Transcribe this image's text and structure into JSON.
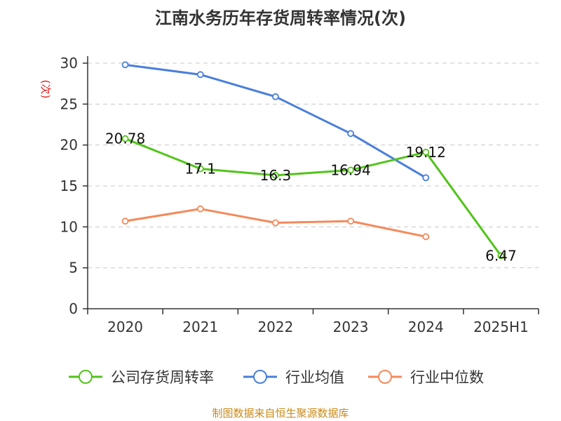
{
  "chart_data": {
    "type": "line",
    "title": "江南水务历年存货周转率情况(次)",
    "ylabel": "(次)",
    "categories": [
      "2020",
      "2021",
      "2022",
      "2023",
      "2024",
      "2025H1"
    ],
    "ylim": [
      0,
      30
    ],
    "yticks": [
      0,
      5,
      10,
      15,
      20,
      25,
      30
    ],
    "grid": true,
    "legend_position": "bottom",
    "series": [
      {
        "name": "公司存货周转率",
        "color": "#52c41a",
        "values": [
          20.78,
          17.1,
          16.3,
          16.94,
          19.12,
          6.47
        ],
        "show_labels": true
      },
      {
        "name": "行业均值",
        "color": "#4a7fdc",
        "values": [
          29.8,
          28.6,
          25.9,
          21.4,
          16.0,
          null
        ],
        "show_labels": false
      },
      {
        "name": "行业中位数",
        "color": "#f5895a",
        "values": [
          10.7,
          12.2,
          10.5,
          10.7,
          8.8,
          null
        ],
        "show_labels": false
      }
    ],
    "data_labels": [
      "20.78",
      "17.1",
      "16.3",
      "16.94",
      "19.12",
      "6.47"
    ],
    "source": "制图数据来自恒生聚源数据库"
  }
}
